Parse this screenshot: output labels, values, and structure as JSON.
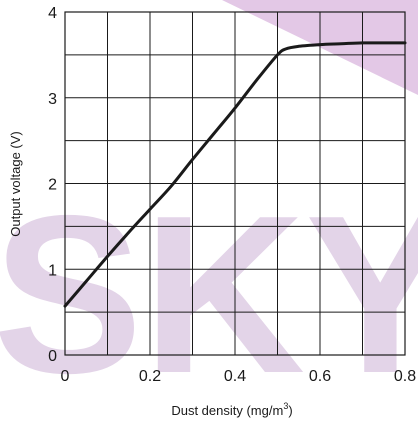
{
  "chart_data": {
    "type": "line",
    "xlabel": "Dust density (mg/m",
    "xlabel_superscript": "3",
    "xlabel_suffix": ")",
    "ylabel": "Output voltage (V)",
    "xlim": [
      0,
      0.8
    ],
    "ylim": [
      0,
      4
    ],
    "x_ticks": [
      {
        "value": 0,
        "label": "0"
      },
      {
        "value": 0.2,
        "label": "0.2"
      },
      {
        "value": 0.4,
        "label": "0.4"
      },
      {
        "value": 0.6,
        "label": "0.6"
      },
      {
        "value": 0.8,
        "label": "0.8"
      }
    ],
    "y_ticks": [
      {
        "value": 0,
        "label": "0"
      },
      {
        "value": 1,
        "label": "1"
      },
      {
        "value": 2,
        "label": "2"
      },
      {
        "value": 3,
        "label": "3"
      },
      {
        "value": 4,
        "label": "4"
      }
    ],
    "grid": true,
    "x_grid_step": 0.1,
    "y_grid_step": 0.5,
    "series": [
      {
        "color": "#1a1a1a",
        "x": [
          0,
          0.05,
          0.1,
          0.15,
          0.2,
          0.25,
          0.3,
          0.35,
          0.4,
          0.45,
          0.5,
          0.52,
          0.55,
          0.6,
          0.65,
          0.7,
          0.75,
          0.8
        ],
        "y": [
          0.57,
          0.86,
          1.15,
          1.43,
          1.7,
          1.97,
          2.28,
          2.58,
          2.88,
          3.2,
          3.5,
          3.57,
          3.6,
          3.62,
          3.63,
          3.64,
          3.64,
          3.64
        ]
      }
    ],
    "watermark": {
      "text": "SKY",
      "color": "#e3d4e8",
      "accent_color": "#e3c8e6"
    }
  }
}
